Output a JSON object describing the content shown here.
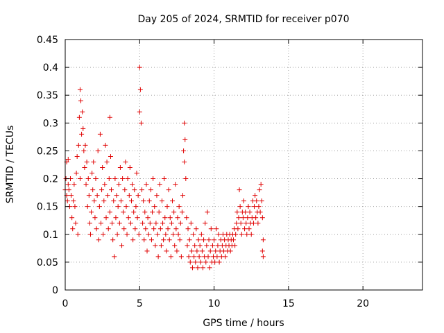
{
  "chart_data": {
    "type": "scatter",
    "title": "Day 205 of 2024, SRMTID for receiver p070",
    "xlabel": "GPS time / hours",
    "ylabel": "SRMTID / TECUs",
    "xlim": [
      0,
      24
    ],
    "ylim": [
      0,
      0.45
    ],
    "x_ticks": [
      0,
      5,
      10,
      15,
      20
    ],
    "y_ticks": [
      0,
      0.05,
      0.1,
      0.15,
      0.2,
      0.25,
      0.3,
      0.35,
      0.4,
      0.45
    ],
    "x_tick_labels": [
      "0",
      "5",
      "10",
      "15",
      "20"
    ],
    "y_tick_labels": [
      "0",
      "0.05",
      "0.1",
      "0.15",
      "0.2",
      "0.25",
      "0.3",
      "0.35",
      "0.4",
      "0.45"
    ],
    "grid": true,
    "marker": "+",
    "marker_color": "#e00000",
    "series": [
      {
        "name": "p070",
        "points": [
          [
            0.0,
            0.18
          ],
          [
            0.05,
            0.2
          ],
          [
            0.1,
            0.17
          ],
          [
            0.1,
            0.23
          ],
          [
            0.15,
            0.16
          ],
          [
            0.2,
            0.19
          ],
          [
            0.2,
            0.235
          ],
          [
            0.25,
            0.18
          ],
          [
            0.3,
            0.15
          ],
          [
            0.35,
            0.2
          ],
          [
            0.4,
            0.17
          ],
          [
            0.45,
            0.13
          ],
          [
            0.5,
            0.11
          ],
          [
            0.55,
            0.16
          ],
          [
            0.6,
            0.19
          ],
          [
            0.65,
            0.15
          ],
          [
            0.7,
            0.12
          ],
          [
            0.75,
            0.21
          ],
          [
            0.8,
            0.24
          ],
          [
            0.85,
            0.1
          ],
          [
            0.9,
            0.26
          ],
          [
            0.95,
            0.31
          ],
          [
            1.0,
            0.2
          ],
          [
            1.0,
            0.36
          ],
          [
            1.05,
            0.34
          ],
          [
            1.1,
            0.28
          ],
          [
            1.15,
            0.32
          ],
          [
            1.2,
            0.29
          ],
          [
            1.25,
            0.25
          ],
          [
            1.3,
            0.22
          ],
          [
            1.35,
            0.26
          ],
          [
            1.4,
            0.19
          ],
          [
            1.45,
            0.23
          ],
          [
            1.5,
            0.15
          ],
          [
            1.55,
            0.2
          ],
          [
            1.6,
            0.17
          ],
          [
            1.65,
            0.12
          ],
          [
            1.7,
            0.1
          ],
          [
            1.75,
            0.14
          ],
          [
            1.8,
            0.21
          ],
          [
            1.85,
            0.18
          ],
          [
            1.9,
            0.23
          ],
          [
            1.95,
            0.16
          ],
          [
            2.0,
            0.13
          ],
          [
            2.05,
            0.2
          ],
          [
            2.1,
            0.11
          ],
          [
            2.15,
            0.17
          ],
          [
            2.2,
            0.25
          ],
          [
            2.25,
            0.09
          ],
          [
            2.3,
            0.15
          ],
          [
            2.35,
            0.28
          ],
          [
            2.4,
            0.12
          ],
          [
            2.45,
            0.18
          ],
          [
            2.5,
            0.22
          ],
          [
            2.55,
            0.1
          ],
          [
            2.6,
            0.16
          ],
          [
            2.65,
            0.19
          ],
          [
            2.7,
            0.26
          ],
          [
            2.75,
            0.13
          ],
          [
            2.8,
            0.23
          ],
          [
            2.85,
            0.17
          ],
          [
            2.9,
            0.11
          ],
          [
            2.95,
            0.2
          ],
          [
            3.0,
            0.14
          ],
          [
            3.0,
            0.31
          ],
          [
            3.05,
            0.24
          ],
          [
            3.1,
            0.18
          ],
          [
            3.15,
            0.12
          ],
          [
            3.2,
            0.09
          ],
          [
            3.25,
            0.16
          ],
          [
            3.3,
            0.06
          ],
          [
            3.35,
            0.2
          ],
          [
            3.4,
            0.13
          ],
          [
            3.45,
            0.17
          ],
          [
            3.5,
            0.1
          ],
          [
            3.55,
            0.15
          ],
          [
            3.6,
            0.19
          ],
          [
            3.65,
            0.12
          ],
          [
            3.7,
            0.22
          ],
          [
            3.75,
            0.16
          ],
          [
            3.8,
            0.08
          ],
          [
            3.85,
            0.2
          ],
          [
            3.9,
            0.14
          ],
          [
            3.95,
            0.11
          ],
          [
            4.0,
            0.18
          ],
          [
            4.05,
            0.23
          ],
          [
            4.1,
            0.15
          ],
          [
            4.15,
            0.1
          ],
          [
            4.2,
            0.2
          ],
          [
            4.25,
            0.13
          ],
          [
            4.3,
            0.17
          ],
          [
            4.35,
            0.22
          ],
          [
            4.4,
            0.12
          ],
          [
            4.45,
            0.16
          ],
          [
            4.5,
            0.19
          ],
          [
            4.55,
            0.09
          ],
          [
            4.6,
            0.14
          ],
          [
            4.65,
            0.18
          ],
          [
            4.7,
            0.11
          ],
          [
            4.75,
            0.15
          ],
          [
            4.8,
            0.21
          ],
          [
            4.85,
            0.13
          ],
          [
            4.9,
            0.17
          ],
          [
            4.95,
            0.1
          ],
          [
            5.0,
            0.32
          ],
          [
            5.0,
            0.4
          ],
          [
            5.05,
            0.36
          ],
          [
            5.1,
            0.3
          ],
          [
            5.15,
            0.18
          ],
          [
            5.2,
            0.12
          ],
          [
            5.25,
            0.16
          ],
          [
            5.3,
            0.09
          ],
          [
            5.35,
            0.14
          ],
          [
            5.4,
            0.11
          ],
          [
            5.45,
            0.19
          ],
          [
            5.5,
            0.07
          ],
          [
            5.55,
            0.13
          ],
          [
            5.6,
            0.1
          ],
          [
            5.65,
            0.16
          ],
          [
            5.7,
            0.12
          ],
          [
            5.75,
            0.18
          ],
          [
            5.8,
            0.09
          ],
          [
            5.85,
            0.14
          ],
          [
            5.9,
            0.2
          ],
          [
            5.95,
            0.11
          ],
          [
            6.0,
            0.15
          ],
          [
            6.05,
            0.08
          ],
          [
            6.1,
            0.12
          ],
          [
            6.15,
            0.17
          ],
          [
            6.2,
            0.1
          ],
          [
            6.25,
            0.06
          ],
          [
            6.3,
            0.14
          ],
          [
            6.35,
            0.19
          ],
          [
            6.4,
            0.11
          ],
          [
            6.45,
            0.08
          ],
          [
            6.5,
            0.16
          ],
          [
            6.55,
            0.12
          ],
          [
            6.6,
            0.09
          ],
          [
            6.65,
            0.2
          ],
          [
            6.7,
            0.13
          ],
          [
            6.75,
            0.1
          ],
          [
            6.8,
            0.07
          ],
          [
            6.85,
            0.15
          ],
          [
            6.9,
            0.11
          ],
          [
            6.95,
            0.18
          ],
          [
            7.0,
            0.09
          ],
          [
            7.05,
            0.13
          ],
          [
            7.1,
            0.06
          ],
          [
            7.15,
            0.12
          ],
          [
            7.2,
            0.16
          ],
          [
            7.25,
            0.1
          ],
          [
            7.3,
            0.14
          ],
          [
            7.35,
            0.08
          ],
          [
            7.4,
            0.19
          ],
          [
            7.45,
            0.11
          ],
          [
            7.5,
            0.07
          ],
          [
            7.55,
            0.13
          ],
          [
            7.6,
            0.1
          ],
          [
            7.65,
            0.15
          ],
          [
            7.7,
            0.09
          ],
          [
            7.75,
            0.12
          ],
          [
            7.8,
            0.06
          ],
          [
            7.85,
            0.14
          ],
          [
            7.9,
            0.17
          ],
          [
            7.95,
            0.25
          ],
          [
            8.0,
            0.23
          ],
          [
            8.0,
            0.3
          ],
          [
            8.05,
            0.27
          ],
          [
            8.1,
            0.2
          ],
          [
            8.15,
            0.13
          ],
          [
            8.2,
            0.08
          ],
          [
            8.25,
            0.11
          ],
          [
            8.3,
            0.06
          ],
          [
            8.35,
            0.09
          ],
          [
            8.4,
            0.05
          ],
          [
            8.45,
            0.12
          ],
          [
            8.5,
            0.07
          ],
          [
            8.55,
            0.04
          ],
          [
            8.6,
            0.1
          ],
          [
            8.65,
            0.06
          ],
          [
            8.7,
            0.08
          ],
          [
            8.75,
            0.05
          ],
          [
            8.8,
            0.11
          ],
          [
            8.85,
            0.07
          ],
          [
            8.9,
            0.04
          ],
          [
            8.95,
            0.09
          ],
          [
            9.0,
            0.06
          ],
          [
            9.05,
            0.08
          ],
          [
            9.1,
            0.05
          ],
          [
            9.15,
            0.1
          ],
          [
            9.2,
            0.07
          ],
          [
            9.25,
            0.04
          ],
          [
            9.3,
            0.09
          ],
          [
            9.35,
            0.06
          ],
          [
            9.4,
            0.12
          ],
          [
            9.45,
            0.05
          ],
          [
            9.5,
            0.08
          ],
          [
            9.55,
            0.14
          ],
          [
            9.6,
            0.06
          ],
          [
            9.65,
            0.09
          ],
          [
            9.7,
            0.04
          ],
          [
            9.75,
            0.07
          ],
          [
            9.8,
            0.11
          ],
          [
            9.85,
            0.05
          ],
          [
            9.9,
            0.08
          ],
          [
            9.95,
            0.06
          ],
          [
            10.0,
            0.09
          ],
          [
            10.05,
            0.05
          ],
          [
            10.1,
            0.07
          ],
          [
            10.15,
            0.11
          ],
          [
            10.2,
            0.06
          ],
          [
            10.25,
            0.08
          ],
          [
            10.3,
            0.1
          ],
          [
            10.35,
            0.05
          ],
          [
            10.4,
            0.07
          ],
          [
            10.45,
            0.09
          ],
          [
            10.5,
            0.06
          ],
          [
            10.55,
            0.08
          ],
          [
            10.6,
            0.1
          ],
          [
            10.65,
            0.07
          ],
          [
            10.7,
            0.09
          ],
          [
            10.75,
            0.06
          ],
          [
            10.8,
            0.08
          ],
          [
            10.85,
            0.1
          ],
          [
            10.9,
            0.07
          ],
          [
            10.95,
            0.09
          ],
          [
            11.0,
            0.08
          ],
          [
            11.05,
            0.1
          ],
          [
            11.1,
            0.07
          ],
          [
            11.15,
            0.09
          ],
          [
            11.2,
            0.08
          ],
          [
            11.25,
            0.1
          ],
          [
            11.3,
            0.09
          ],
          [
            11.35,
            0.11
          ],
          [
            11.4,
            0.08
          ],
          [
            11.45,
            0.1
          ],
          [
            11.5,
            0.12
          ],
          [
            11.55,
            0.14
          ],
          [
            11.6,
            0.11
          ],
          [
            11.65,
            0.13
          ],
          [
            11.7,
            0.18
          ],
          [
            11.75,
            0.15
          ],
          [
            11.8,
            0.12
          ],
          [
            11.85,
            0.1
          ],
          [
            11.9,
            0.14
          ],
          [
            11.95,
            0.13
          ],
          [
            12.0,
            0.16
          ],
          [
            12.05,
            0.11
          ],
          [
            12.1,
            0.14
          ],
          [
            12.15,
            0.12
          ],
          [
            12.2,
            0.1
          ],
          [
            12.25,
            0.13
          ],
          [
            12.3,
            0.15
          ],
          [
            12.35,
            0.11
          ],
          [
            12.4,
            0.14
          ],
          [
            12.45,
            0.12
          ],
          [
            12.5,
            0.1
          ],
          [
            12.55,
            0.13
          ],
          [
            12.6,
            0.16
          ],
          [
            12.65,
            0.12
          ],
          [
            12.7,
            0.15
          ],
          [
            12.75,
            0.17
          ],
          [
            12.8,
            0.13
          ],
          [
            12.85,
            0.16
          ],
          [
            12.9,
            0.14
          ],
          [
            12.95,
            0.12
          ],
          [
            13.0,
            0.15
          ],
          [
            13.05,
            0.18
          ],
          [
            13.1,
            0.14
          ],
          [
            13.15,
            0.19
          ],
          [
            13.2,
            0.16
          ],
          [
            13.25,
            0.13
          ],
          [
            13.3,
            0.09
          ],
          [
            13.3,
            0.06
          ],
          [
            13.25,
            0.07
          ]
        ]
      }
    ]
  }
}
